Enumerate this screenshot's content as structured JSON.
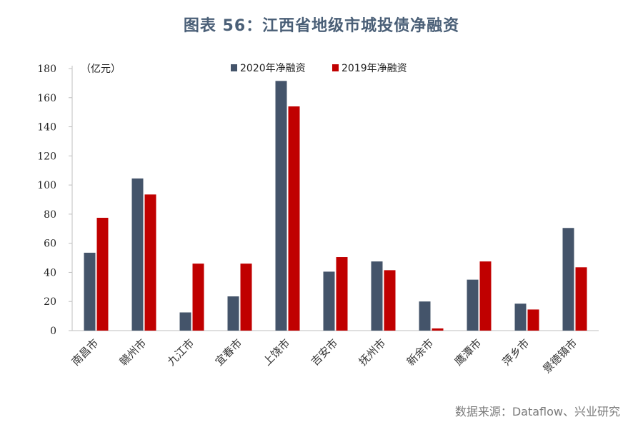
{
  "title": "图表 56：江西省地级市城投债净融资",
  "source": "数据来源：Dataflow、兴业研究",
  "chart_data": {
    "type": "bar",
    "title": "图表 56：江西省地级市城投债净融资",
    "unit_label": "（亿元）",
    "xlabel": "",
    "ylabel": "",
    "ylim": [
      0,
      180
    ],
    "yticks": [
      0,
      20,
      40,
      60,
      80,
      100,
      120,
      140,
      160,
      180
    ],
    "grid": false,
    "legend_position": "top",
    "categories": [
      "南昌市",
      "赣州市",
      "九江市",
      "宜春市",
      "上饶市",
      "吉安市",
      "抚州市",
      "新余市",
      "鹰潭市",
      "萍乡市",
      "景德镇市"
    ],
    "series": [
      {
        "name": "2020年净融资",
        "color": "#44546a",
        "values": [
          53.5,
          104.5,
          12.5,
          23.5,
          171.5,
          40.5,
          47.5,
          20.0,
          35.0,
          18.5,
          70.5
        ]
      },
      {
        "name": "2019年净融资",
        "color": "#c00000",
        "values": [
          77.5,
          93.5,
          46.0,
          46.0,
          154.0,
          50.5,
          41.5,
          1.5,
          47.5,
          14.5,
          43.5
        ]
      }
    ]
  }
}
